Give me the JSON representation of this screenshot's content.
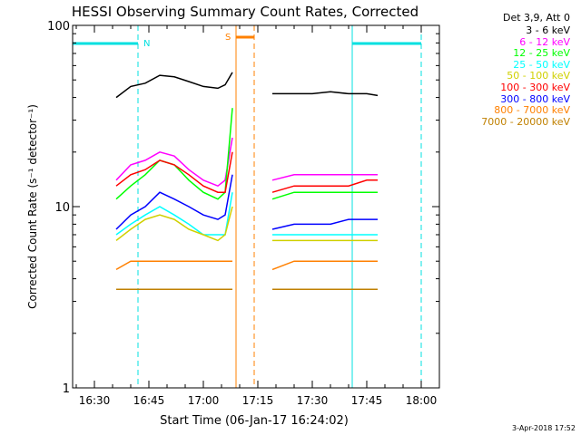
{
  "chart_data": {
    "type": "line",
    "title": "HESSI Observing Summary Count Rates, Corrected",
    "xlabel": "Start Time (06-Jan-17 16:24:02)",
    "ylabel": "Corrected Count Rate (s⁻¹ detector⁻¹)",
    "y_scale": "log",
    "ylim": [
      1,
      100
    ],
    "xlim_minutes": [
      984,
      1085
    ],
    "x_ticks": [
      {
        "label": "16:30",
        "value": 990
      },
      {
        "label": "16:45",
        "value": 1005
      },
      {
        "label": "17:00",
        "value": 1020
      },
      {
        "label": "17:15",
        "value": 1035
      },
      {
        "label": "17:30",
        "value": 1050
      },
      {
        "label": "17:45",
        "value": 1065
      },
      {
        "label": "18:00",
        "value": 1080
      }
    ],
    "y_ticks": [
      {
        "label": "1",
        "value": 1
      },
      {
        "label": "10",
        "value": 10
      },
      {
        "label": "100",
        "value": 100
      }
    ],
    "legend_title": "Det 3,9, Att 0",
    "series": [
      {
        "name": "3 - 6 keV",
        "color": "#000000",
        "values": [
          [
            996,
            40
          ],
          [
            1000,
            46
          ],
          [
            1004,
            48
          ],
          [
            1008,
            53
          ],
          [
            1012,
            52
          ],
          [
            1016,
            49
          ],
          [
            1020,
            46
          ],
          [
            1024,
            45
          ],
          [
            1026,
            47
          ],
          [
            1028,
            55
          ],
          [
            1039,
            42
          ],
          [
            1045,
            42
          ],
          [
            1050,
            42
          ],
          [
            1055,
            43
          ],
          [
            1060,
            42
          ],
          [
            1065,
            42
          ],
          [
            1068,
            41
          ]
        ]
      },
      {
        "name": "6 - 12 keV",
        "color": "#ff00ff",
        "values": [
          [
            996,
            14
          ],
          [
            1000,
            17
          ],
          [
            1004,
            18
          ],
          [
            1008,
            20
          ],
          [
            1012,
            19
          ],
          [
            1016,
            16
          ],
          [
            1020,
            14
          ],
          [
            1024,
            13
          ],
          [
            1026,
            14
          ],
          [
            1028,
            24
          ],
          [
            1039,
            14
          ],
          [
            1045,
            15
          ],
          [
            1050,
            15
          ],
          [
            1055,
            15
          ],
          [
            1060,
            15
          ],
          [
            1065,
            15
          ],
          [
            1068,
            15
          ]
        ]
      },
      {
        "name": "12 - 25 keV",
        "color": "#00ff00",
        "values": [
          [
            996,
            11
          ],
          [
            1000,
            13
          ],
          [
            1004,
            15
          ],
          [
            1008,
            18
          ],
          [
            1012,
            17
          ],
          [
            1016,
            14
          ],
          [
            1020,
            12
          ],
          [
            1024,
            11
          ],
          [
            1026,
            12
          ],
          [
            1028,
            35
          ],
          [
            1039,
            11
          ],
          [
            1045,
            12
          ],
          [
            1050,
            12
          ],
          [
            1055,
            12
          ],
          [
            1060,
            12
          ],
          [
            1065,
            12
          ],
          [
            1068,
            12
          ]
        ]
      },
      {
        "name": "25 - 50 keV",
        "color": "#00ffff",
        "values": [
          [
            996,
            7
          ],
          [
            1000,
            8
          ],
          [
            1004,
            9
          ],
          [
            1008,
            10
          ],
          [
            1012,
            9
          ],
          [
            1016,
            8
          ],
          [
            1020,
            7
          ],
          [
            1024,
            7
          ],
          [
            1026,
            7
          ],
          [
            1028,
            12
          ],
          [
            1039,
            7
          ],
          [
            1045,
            7
          ],
          [
            1050,
            7
          ],
          [
            1055,
            7
          ],
          [
            1060,
            7
          ],
          [
            1065,
            7
          ],
          [
            1068,
            7
          ]
        ]
      },
      {
        "name": "50 - 100 keV",
        "color": "#d0d000",
        "values": [
          [
            996,
            6.5
          ],
          [
            1000,
            7.5
          ],
          [
            1004,
            8.5
          ],
          [
            1008,
            9
          ],
          [
            1012,
            8.5
          ],
          [
            1016,
            7.5
          ],
          [
            1020,
            7
          ],
          [
            1024,
            6.5
          ],
          [
            1026,
            7
          ],
          [
            1028,
            10
          ],
          [
            1039,
            6.5
          ],
          [
            1045,
            6.5
          ],
          [
            1050,
            6.5
          ],
          [
            1055,
            6.5
          ],
          [
            1060,
            6.5
          ],
          [
            1065,
            6.5
          ],
          [
            1068,
            6.5
          ]
        ]
      },
      {
        "name": "100 - 300 keV",
        "color": "#ff0000",
        "values": [
          [
            996,
            13
          ],
          [
            1000,
            15
          ],
          [
            1004,
            16
          ],
          [
            1008,
            18
          ],
          [
            1012,
            17
          ],
          [
            1016,
            15
          ],
          [
            1020,
            13
          ],
          [
            1024,
            12
          ],
          [
            1026,
            12
          ],
          [
            1028,
            20
          ],
          [
            1039,
            12
          ],
          [
            1045,
            13
          ],
          [
            1050,
            13
          ],
          [
            1055,
            13
          ],
          [
            1060,
            13
          ],
          [
            1065,
            14
          ],
          [
            1068,
            14
          ]
        ]
      },
      {
        "name": "300 - 800 keV",
        "color": "#0000ff",
        "values": [
          [
            996,
            7.5
          ],
          [
            1000,
            9
          ],
          [
            1004,
            10
          ],
          [
            1008,
            12
          ],
          [
            1012,
            11
          ],
          [
            1016,
            10
          ],
          [
            1020,
            9
          ],
          [
            1024,
            8.5
          ],
          [
            1026,
            9
          ],
          [
            1028,
            15
          ],
          [
            1039,
            7.5
          ],
          [
            1045,
            8
          ],
          [
            1050,
            8
          ],
          [
            1055,
            8
          ],
          [
            1060,
            8.5
          ],
          [
            1065,
            8.5
          ],
          [
            1068,
            8.5
          ]
        ]
      },
      {
        "name": "800 - 7000 keV",
        "color": "#ff8000",
        "values": [
          [
            996,
            4.5
          ],
          [
            1000,
            5
          ],
          [
            1004,
            5
          ],
          [
            1008,
            5
          ],
          [
            1012,
            5
          ],
          [
            1016,
            5
          ],
          [
            1020,
            5
          ],
          [
            1024,
            5
          ],
          [
            1026,
            5
          ],
          [
            1028,
            5
          ],
          [
            1039,
            4.5
          ],
          [
            1045,
            5
          ],
          [
            1050,
            5
          ],
          [
            1055,
            5
          ],
          [
            1060,
            5
          ],
          [
            1065,
            5
          ],
          [
            1068,
            5
          ]
        ]
      },
      {
        "name": "7000 - 20000 keV",
        "color": "#c08000",
        "values": [
          [
            996,
            3.5
          ],
          [
            1000,
            3.5
          ],
          [
            1004,
            3.5
          ],
          [
            1008,
            3.5
          ],
          [
            1012,
            3.5
          ],
          [
            1016,
            3.5
          ],
          [
            1020,
            3.5
          ],
          [
            1024,
            3.5
          ],
          [
            1026,
            3.5
          ],
          [
            1028,
            3.5
          ],
          [
            1039,
            3.5
          ],
          [
            1045,
            3.5
          ],
          [
            1050,
            3.5
          ],
          [
            1055,
            3.5
          ],
          [
            1060,
            3.5
          ],
          [
            1065,
            3.5
          ],
          [
            1068,
            3.5
          ]
        ]
      }
    ],
    "annotations": [
      {
        "label": "N",
        "color": "#00e0e0",
        "x_start": 984,
        "x_end": 1002
      },
      {
        "label": "S",
        "color": "#ff8000",
        "x_start": 1029,
        "x_end": 1034
      },
      {
        "label": "",
        "color": "#00e0e0",
        "x_start": 1061,
        "x_end": 1080
      }
    ],
    "vlines": [
      {
        "x": 984,
        "color": "#00e0e0",
        "style": "solid"
      },
      {
        "x": 1002,
        "color": "#00e0e0",
        "style": "dashed"
      },
      {
        "x": 1061,
        "color": "#00e0e0",
        "style": "solid"
      },
      {
        "x": 1080,
        "color": "#00e0e0",
        "style": "dashed"
      },
      {
        "x": 1029,
        "color": "#ff8000",
        "style": "solid"
      },
      {
        "x": 1034,
        "color": "#ff8000",
        "style": "dashed"
      }
    ],
    "grid": false,
    "legend_position": "right"
  },
  "footer": {
    "timestamp": "3-Apr-2018 17:52"
  }
}
